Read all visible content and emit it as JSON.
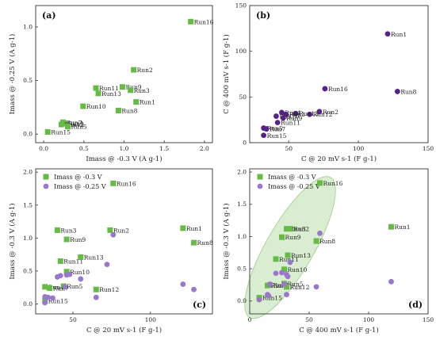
{
  "chart_data": [
    {
      "panel": "(a)",
      "type": "scatter",
      "xlabel": "Imass @ -0.3 V (A g-1)",
      "ylabel": "Imass @ -0.25 V (A g-1)",
      "xlim": [
        -0.1,
        2.1
      ],
      "ylim": [
        -0.08,
        1.2
      ],
      "xticks": [
        {
          "v": 0.0,
          "t": "0.0"
        },
        {
          "v": 0.5,
          "t": "0.5"
        },
        {
          "v": 1.0,
          "t": "1.0"
        },
        {
          "v": 1.5,
          "t": "1.5"
        },
        {
          "v": 2.0,
          "t": "2.0"
        }
      ],
      "yticks": [
        {
          "v": 0.0,
          "t": "0.0"
        },
        {
          "v": 0.5,
          "t": "0.5"
        },
        {
          "v": 1.0,
          "t": "1.0"
        }
      ],
      "color": "#66bb44",
      "marker": "square",
      "points": [
        {
          "label": "Run16",
          "x": 1.83,
          "y": 1.05
        },
        {
          "label": "Run2",
          "x": 1.12,
          "y": 0.6
        },
        {
          "label": "Run11",
          "x": 0.65,
          "y": 0.43
        },
        {
          "label": "Run13",
          "x": 0.68,
          "y": 0.38
        },
        {
          "label": "Run9",
          "x": 0.98,
          "y": 0.44
        },
        {
          "label": "Run3",
          "x": 1.08,
          "y": 0.41
        },
        {
          "label": "Run1",
          "x": 1.15,
          "y": 0.3
        },
        {
          "label": "Run10",
          "x": 0.49,
          "y": 0.26
        },
        {
          "label": "Run8",
          "x": 0.93,
          "y": 0.22
        },
        {
          "label": "Run7",
          "x": 0.24,
          "y": 0.11
        },
        {
          "label": "Run4",
          "x": 0.26,
          "y": 0.1
        },
        {
          "label": "Run12",
          "x": 0.22,
          "y": 0.09
        },
        {
          "label": "Run5",
          "x": 0.3,
          "y": 0.07
        },
        {
          "label": "Run15",
          "x": 0.05,
          "y": 0.02
        }
      ]
    },
    {
      "panel": "(b)",
      "type": "scatter",
      "xlabel": "C @ 20 mV s-1 (F g-1)",
      "ylabel": "C @ 400 mV s-1 (F g-1)",
      "xlim": [
        22,
        150
      ],
      "ylim": [
        0,
        150
      ],
      "xticks": [
        {
          "v": 50,
          "t": "50"
        },
        {
          "v": 100,
          "t": "100"
        },
        {
          "v": 150,
          "t": "150"
        }
      ],
      "yticks": [
        {
          "v": 0,
          "t": "0"
        },
        {
          "v": 50,
          "t": "50"
        },
        {
          "v": 100,
          "t": "100"
        },
        {
          "v": 150,
          "t": "150"
        }
      ],
      "color": "#552288",
      "marker": "circle",
      "points": [
        {
          "label": "Run1",
          "x": 121,
          "y": 119
        },
        {
          "label": "Run16",
          "x": 76,
          "y": 59
        },
        {
          "label": "Run8",
          "x": 128,
          "y": 56
        },
        {
          "label": "Run2",
          "x": 72,
          "y": 34
        },
        {
          "label": "Run12",
          "x": 65,
          "y": 31
        },
        {
          "label": "Run13",
          "x": 55,
          "y": 32
        },
        {
          "label": "Run4",
          "x": 45,
          "y": 33
        },
        {
          "label": "Run3",
          "x": 48,
          "y": 31
        },
        {
          "label": "Run10",
          "x": 41,
          "y": 29
        },
        {
          "label": "Run9",
          "x": 46,
          "y": 27
        },
        {
          "label": "Run11",
          "x": 42,
          "y": 22
        },
        {
          "label": "Run5",
          "x": 32,
          "y": 16
        },
        {
          "label": "Run7",
          "x": 34,
          "y": 15
        },
        {
          "label": "Run15",
          "x": 32,
          "y": 8
        }
      ]
    },
    {
      "panel": "(c)",
      "type": "scatter",
      "xlabel": "C @ 20 mV s-1 (F g-1)",
      "ylabel": "Imass @ -0.3 V (A g-1)",
      "xlim": [
        26,
        140
      ],
      "ylim": [
        -0.15,
        2.05
      ],
      "xticks": [
        {
          "v": 50,
          "t": "50"
        },
        {
          "v": 100,
          "t": "100"
        }
      ],
      "yticks": [
        {
          "v": 0.0,
          "t": "0.0"
        },
        {
          "v": 0.5,
          "t": "0.5"
        },
        {
          "v": 1.0,
          "t": "1.0"
        },
        {
          "v": 1.5,
          "t": "1.5"
        },
        {
          "v": 2.0,
          "t": "2.0"
        }
      ],
      "legend": [
        {
          "name": "Imass @ -0.3 V",
          "color": "#66bb44",
          "marker": "square"
        },
        {
          "name": "Imass @ -0.25 V",
          "color": "#9977cc",
          "marker": "circle"
        }
      ],
      "series": [
        {
          "name": "Imass @ -0.3 V",
          "color": "#66bb44",
          "marker": "square",
          "points": [
            {
              "label": "Run16",
              "x": 76,
              "y": 1.83
            },
            {
              "label": "Run3",
              "x": 40,
              "y": 1.12
            },
            {
              "label": "Run2",
              "x": 74,
              "y": 1.12
            },
            {
              "label": "Run1",
              "x": 121,
              "y": 1.15
            },
            {
              "label": "Run9",
              "x": 46,
              "y": 0.98
            },
            {
              "label": "Run8",
              "x": 128,
              "y": 0.93
            },
            {
              "label": "Run11",
              "x": 42,
              "y": 0.65
            },
            {
              "label": "Run13",
              "x": 55,
              "y": 0.71
            },
            {
              "label": "Run10",
              "x": 46,
              "y": 0.49
            },
            {
              "label": "Run4",
              "x": 32,
              "y": 0.26
            },
            {
              "label": "Run5",
              "x": 44,
              "y": 0.27
            },
            {
              "label": "Run7",
              "x": 35,
              "y": 0.24
            },
            {
              "label": "Run12",
              "x": 65,
              "y": 0.22
            },
            {
              "label": "Run15",
              "x": 32,
              "y": 0.05
            }
          ]
        },
        {
          "name": "Imass @ -0.25 V",
          "color": "#9977cc",
          "marker": "circle",
          "points": [
            {
              "x": 76,
              "y": 1.05
            },
            {
              "x": 72,
              "y": 0.6
            },
            {
              "x": 40,
              "y": 0.41
            },
            {
              "x": 42,
              "y": 0.43
            },
            {
              "x": 46,
              "y": 0.44
            },
            {
              "x": 55,
              "y": 0.38
            },
            {
              "x": 48,
              "y": 0.45
            },
            {
              "x": 121,
              "y": 0.3
            },
            {
              "x": 128,
              "y": 0.22
            },
            {
              "x": 45,
              "y": 0.26
            },
            {
              "x": 65,
              "y": 0.1
            },
            {
              "x": 32,
              "y": 0.11
            },
            {
              "x": 34,
              "y": 0.1
            },
            {
              "x": 37,
              "y": 0.09
            },
            {
              "x": 32,
              "y": 0.02
            }
          ]
        }
      ]
    },
    {
      "panel": "(d)",
      "type": "scatter",
      "xlabel": "C @ 400 mV s-1 (F g-1)",
      "ylabel": "Imass @ -0.3 V (A g-1)",
      "xlim": [
        0,
        150
      ],
      "ylim": [
        -0.2,
        2.05
      ],
      "xticks": [
        {
          "v": 0,
          "t": "0"
        },
        {
          "v": 50,
          "t": "50"
        },
        {
          "v": 100,
          "t": "100"
        },
        {
          "v": 150,
          "t": "150"
        }
      ],
      "yticks": [
        {
          "v": 0.0,
          "t": "0.0"
        },
        {
          "v": 0.5,
          "t": "0.5"
        },
        {
          "v": 1.0,
          "t": "1.0"
        },
        {
          "v": 1.5,
          "t": "1.5"
        },
        {
          "v": 2.0,
          "t": "2.0"
        }
      ],
      "legend": [
        {
          "name": "Imass @ -0.3 V",
          "color": "#66bb44",
          "marker": "square"
        },
        {
          "name": "Imass @ -0.25 V",
          "color": "#9977cc",
          "marker": "circle"
        }
      ],
      "ellipse_color": "#cfe8c4",
      "series": [
        {
          "name": "Imass @ -0.3 V",
          "color": "#66bb44",
          "marker": "square",
          "points": [
            {
              "label": "Run16",
              "x": 59,
              "y": 1.83
            },
            {
              "label": "Run3",
              "x": 31,
              "y": 1.12
            },
            {
              "label": "Run2",
              "x": 34,
              "y": 1.12
            },
            {
              "label": "Run1",
              "x": 119,
              "y": 1.15
            },
            {
              "label": "Run9",
              "x": 27,
              "y": 0.99
            },
            {
              "label": "Run8",
              "x": 56,
              "y": 0.93
            },
            {
              "label": "Run11",
              "x": 22,
              "y": 0.65
            },
            {
              "label": "Run13",
              "x": 32,
              "y": 0.71
            },
            {
              "label": "Run10",
              "x": 29,
              "y": 0.49
            },
            {
              "label": "Run4",
              "x": 17,
              "y": 0.25
            },
            {
              "label": "Run5",
              "x": 29,
              "y": 0.27
            },
            {
              "label": "Run7",
              "x": 15,
              "y": 0.24
            },
            {
              "label": "Run12",
              "x": 31,
              "y": 0.22
            },
            {
              "label": "Run15",
              "x": 8,
              "y": 0.05
            }
          ]
        },
        {
          "name": "Imass @ -0.25 V",
          "color": "#9977cc",
          "marker": "circle",
          "points": [
            {
              "x": 59,
              "y": 1.05
            },
            {
              "x": 34,
              "y": 0.6
            },
            {
              "x": 22,
              "y": 0.43
            },
            {
              "x": 27,
              "y": 0.44
            },
            {
              "x": 31,
              "y": 0.41
            },
            {
              "x": 32,
              "y": 0.38
            },
            {
              "x": 119,
              "y": 0.3
            },
            {
              "x": 56,
              "y": 0.22
            },
            {
              "x": 29,
              "y": 0.26
            },
            {
              "x": 17,
              "y": 0.26
            },
            {
              "x": 31,
              "y": 0.1
            },
            {
              "x": 15,
              "y": 0.1
            },
            {
              "x": 16,
              "y": 0.08
            },
            {
              "x": 8,
              "y": 0.02
            }
          ]
        }
      ]
    }
  ]
}
